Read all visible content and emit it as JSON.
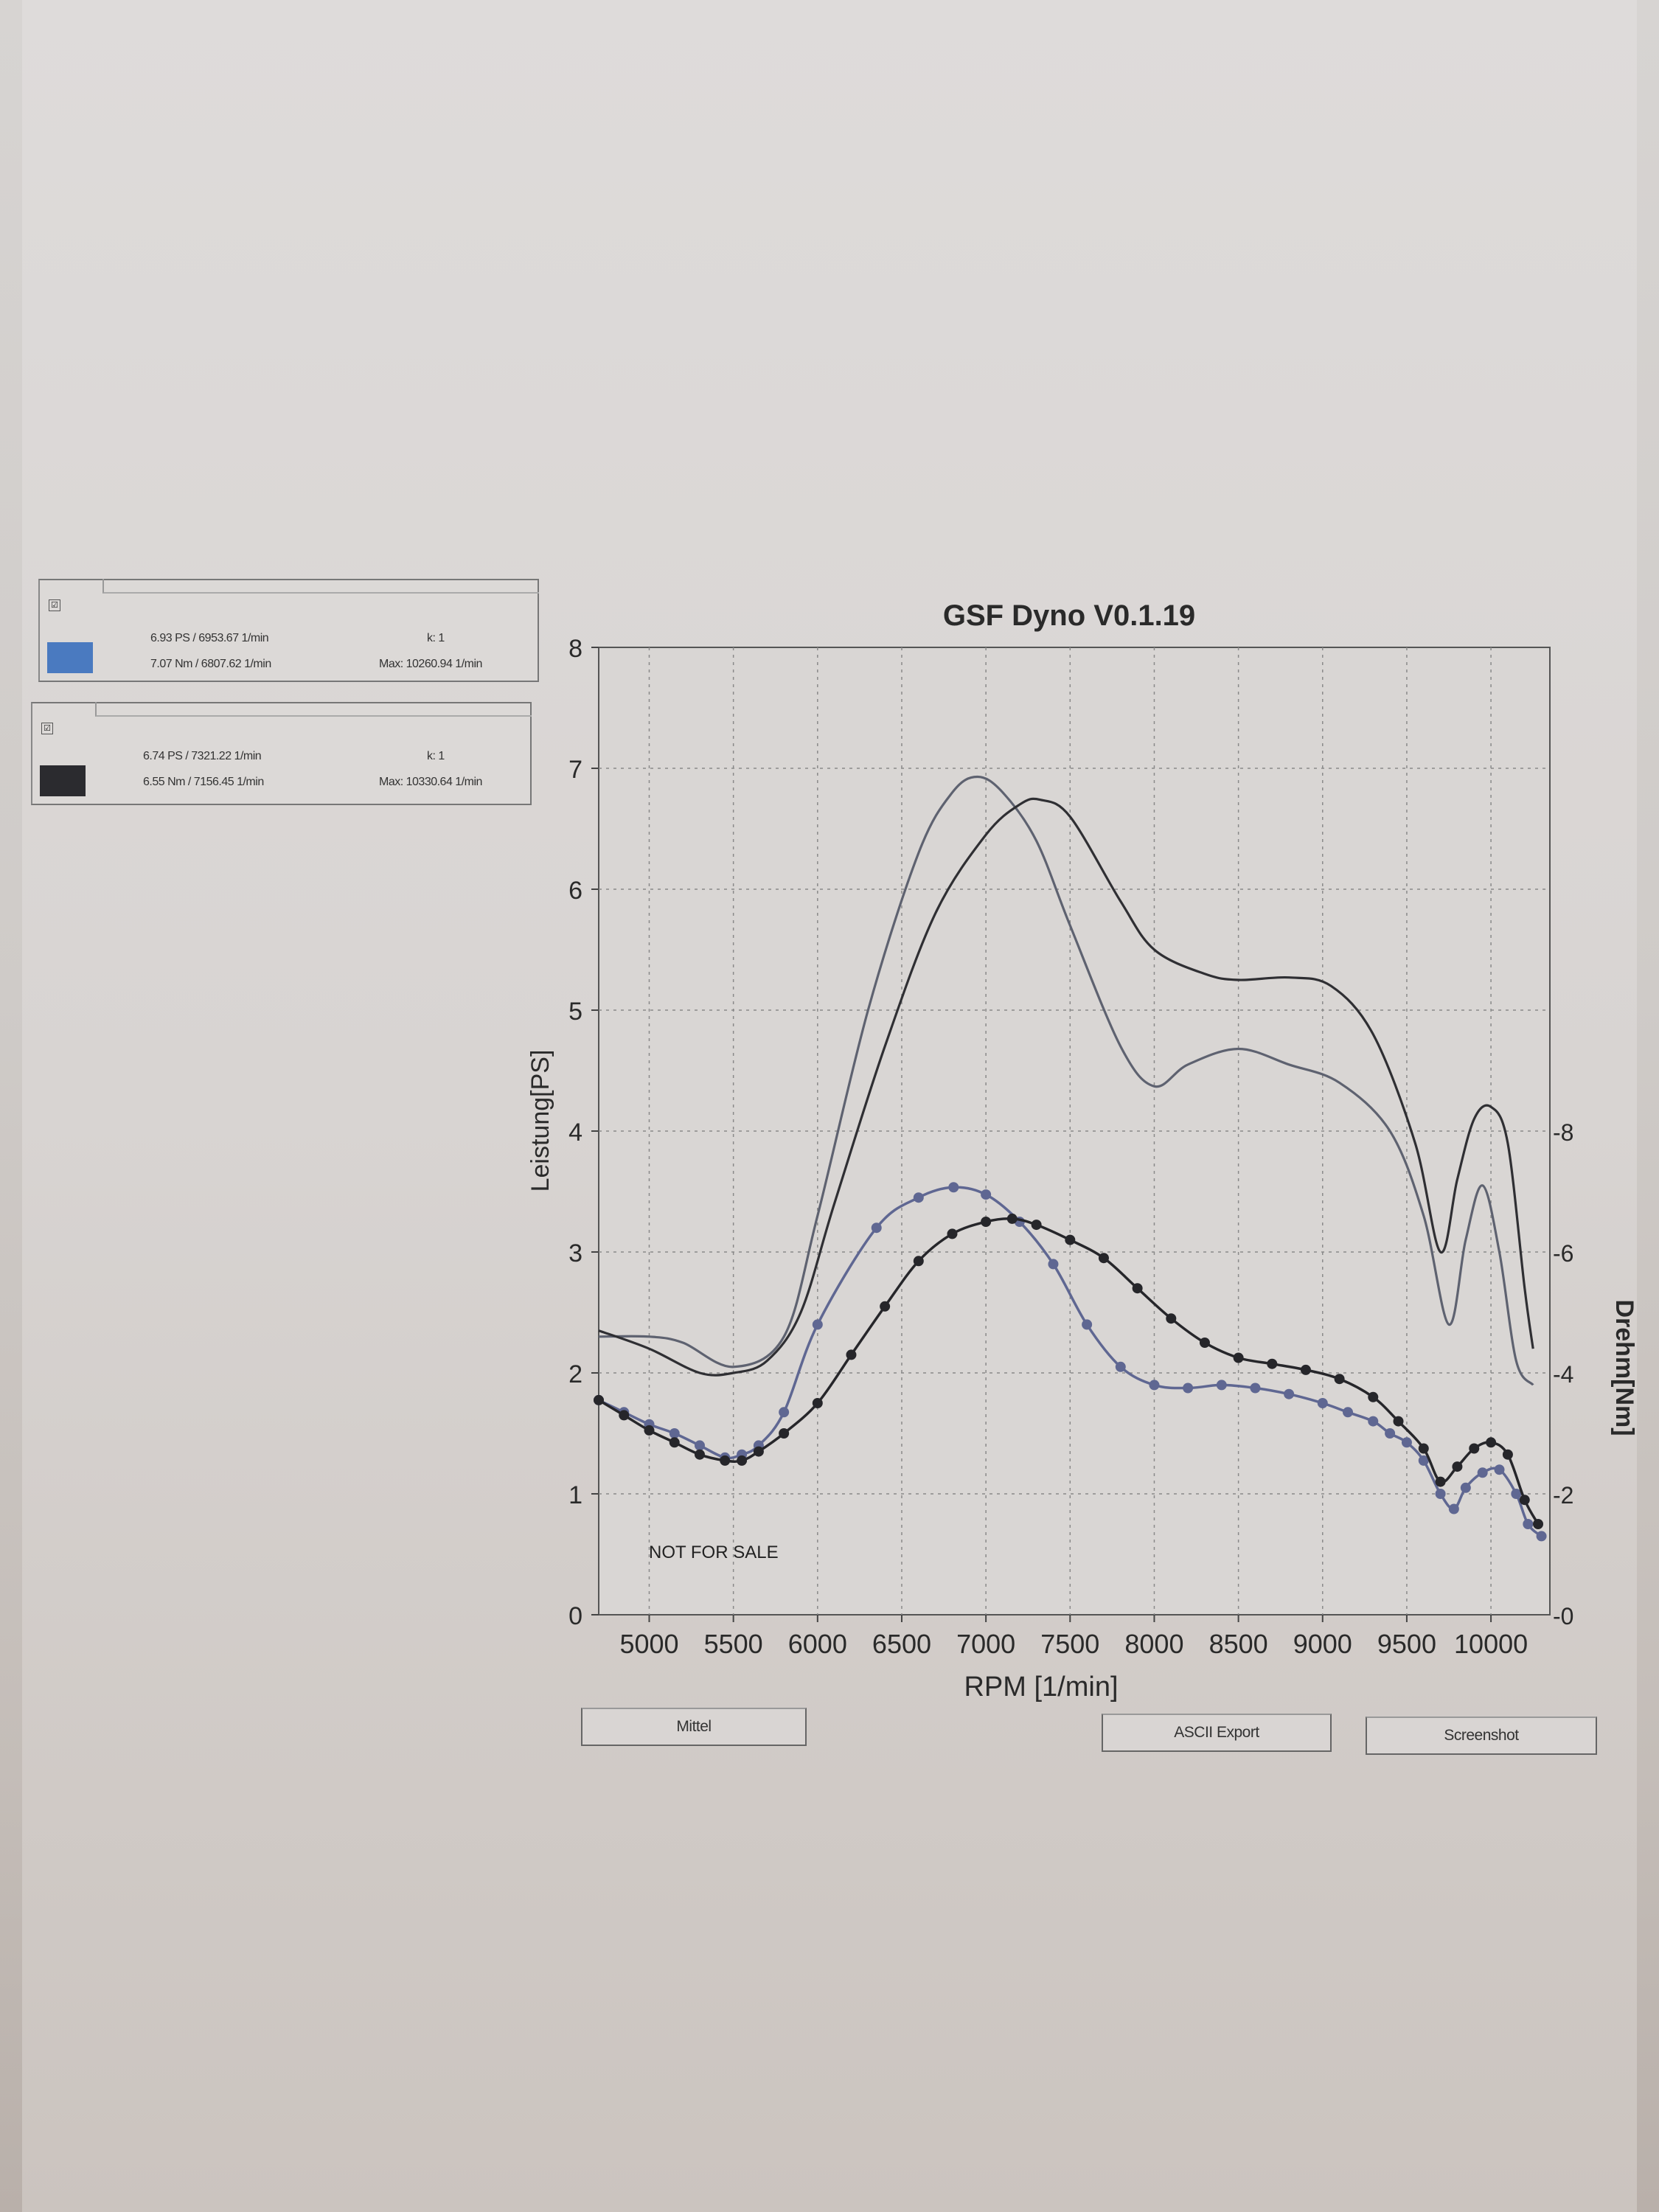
{
  "legend": [
    {
      "checkbox": "☑",
      "color": "#4a7ac0",
      "line1": "6.93 PS / 6953.67 1/min",
      "line2": "7.07 Nm / 6807.62 1/min",
      "k": "k: 1",
      "max": "Max: 10260.94 1/min"
    },
    {
      "checkbox": "☑",
      "color": "#2b2b2f",
      "line1": "6.74 PS / 7321.22 1/min",
      "line2": "6.55 Nm / 7156.45 1/min",
      "k": "k: 1",
      "max": "Max: 10330.64 1/min"
    }
  ],
  "buttons": {
    "mittel": "Mittel",
    "ascii_export": "ASCII Export",
    "screenshot": "Screenshot"
  },
  "chart_data": {
    "type": "line",
    "title": "GSF Dyno V0.1.19",
    "xlabel": "RPM [1/min]",
    "ylabel": "Leistung[PS]",
    "y2label": "Drehm[Nm]",
    "annotation": "NOT FOR SALE",
    "xlim": [
      4700,
      10350
    ],
    "ylim": [
      0,
      8
    ],
    "y2lim": [
      0,
      16
    ],
    "xticks": [
      5000,
      5500,
      6000,
      6500,
      7000,
      7500,
      8000,
      8500,
      9000,
      9500,
      10000
    ],
    "yticks": [
      0,
      1,
      2,
      3,
      4,
      5,
      6,
      7,
      8
    ],
    "y2ticks": [
      0,
      2,
      4,
      6,
      8
    ],
    "y2tick_labels": [
      "-0",
      "-2",
      "-4",
      "-6",
      "-8"
    ],
    "grid": true,
    "series": [
      {
        "axis": "left",
        "color": "#5e6270",
        "x": [
          4700,
          5000,
          5200,
          5500,
          5800,
          6000,
          6300,
          6600,
          6800,
          6950,
          7100,
          7300,
          7500,
          7800,
          8000,
          8200,
          8500,
          8800,
          9100,
          9400,
          9600,
          9750,
          9850,
          9950,
          10050,
          10150,
          10250
        ],
        "y": [
          2.3,
          2.3,
          2.25,
          2.05,
          2.3,
          3.3,
          5.0,
          6.3,
          6.8,
          6.93,
          6.8,
          6.4,
          5.7,
          4.7,
          4.37,
          4.55,
          4.68,
          4.55,
          4.4,
          4.0,
          3.3,
          2.4,
          3.1,
          3.55,
          3.0,
          2.1,
          1.9
        ]
      },
      {
        "axis": "left",
        "color": "#2f2f33",
        "x": [
          4700,
          5000,
          5300,
          5500,
          5700,
          5900,
          6100,
          6400,
          6700,
          7000,
          7200,
          7321,
          7500,
          7800,
          8000,
          8300,
          8500,
          8800,
          9050,
          9300,
          9550,
          9700,
          9800,
          9900,
          10000,
          10100,
          10200,
          10250
        ],
        "y": [
          2.35,
          2.2,
          2.0,
          2.0,
          2.1,
          2.5,
          3.4,
          4.7,
          5.8,
          6.45,
          6.7,
          6.74,
          6.6,
          5.9,
          5.5,
          5.3,
          5.25,
          5.27,
          5.2,
          4.8,
          3.9,
          3.0,
          3.6,
          4.1,
          4.2,
          3.9,
          2.7,
          2.2
        ]
      },
      {
        "axis": "right",
        "color": "#5f6792",
        "markers": true,
        "x": [
          4700,
          4850,
          5000,
          5150,
          5300,
          5450,
          5550,
          5650,
          5800,
          6000,
          6350,
          6600,
          6808,
          7000,
          7200,
          7400,
          7600,
          7800,
          8000,
          8200,
          8400,
          8600,
          8800,
          9000,
          9150,
          9300,
          9400,
          9500,
          9600,
          9700,
          9780,
          9850,
          9950,
          10050,
          10150,
          10220,
          10300
        ],
        "y": [
          3.55,
          3.35,
          3.15,
          3.0,
          2.8,
          2.6,
          2.65,
          2.8,
          3.35,
          4.8,
          6.4,
          6.9,
          7.07,
          6.95,
          6.5,
          5.8,
          4.8,
          4.1,
          3.8,
          3.75,
          3.8,
          3.75,
          3.65,
          3.5,
          3.35,
          3.2,
          3.0,
          2.85,
          2.55,
          2.0,
          1.75,
          2.1,
          2.35,
          2.4,
          2.0,
          1.5,
          1.3
        ]
      },
      {
        "axis": "right",
        "color": "#26262a",
        "markers": true,
        "x": [
          4700,
          4850,
          5000,
          5150,
          5300,
          5450,
          5550,
          5650,
          5800,
          6000,
          6200,
          6400,
          6600,
          6800,
          7000,
          7156,
          7300,
          7500,
          7700,
          7900,
          8100,
          8300,
          8500,
          8700,
          8900,
          9100,
          9300,
          9450,
          9600,
          9700,
          9800,
          9900,
          10000,
          10100,
          10200,
          10280
        ],
        "y": [
          3.55,
          3.3,
          3.05,
          2.85,
          2.65,
          2.55,
          2.55,
          2.7,
          3.0,
          3.5,
          4.3,
          5.1,
          5.85,
          6.3,
          6.5,
          6.55,
          6.45,
          6.2,
          5.9,
          5.4,
          4.9,
          4.5,
          4.25,
          4.15,
          4.05,
          3.9,
          3.6,
          3.2,
          2.75,
          2.2,
          2.45,
          2.75,
          2.85,
          2.65,
          1.9,
          1.5
        ]
      }
    ]
  }
}
